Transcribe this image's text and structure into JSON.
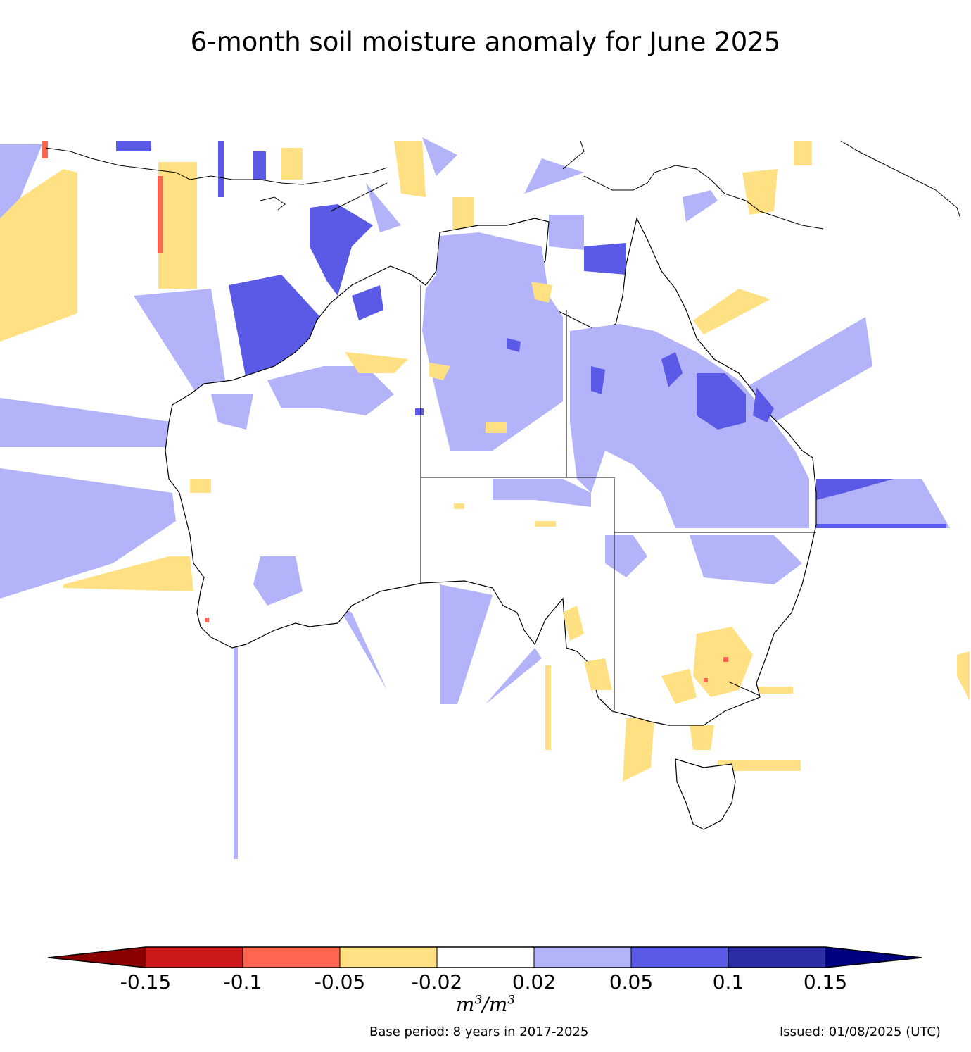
{
  "title": "6-month soil moisture anomaly for June 2025",
  "colorbar": {
    "tick_labels": [
      "-0.15",
      "-0.1",
      "-0.05",
      "-0.02",
      "0.02",
      "0.05",
      "0.1",
      "0.15"
    ],
    "colors": {
      "below_min": "#8b0000",
      "bin_1": "#cc1a1a",
      "bin_2": "#ff6650",
      "bin_3": "#ffe082",
      "bin_4": "#ffffff",
      "bin_5": "#b3b3fa",
      "bin_6": "#5a5ae6",
      "bin_7": "#2d2da5",
      "above_max": "#000080"
    },
    "unit_base": "m",
    "unit_exp": "3"
  },
  "footer": {
    "base_period": "Base period: 8 years in 2017-2025",
    "issued": "Issued: 01/08/2025 (UTC)"
  }
}
